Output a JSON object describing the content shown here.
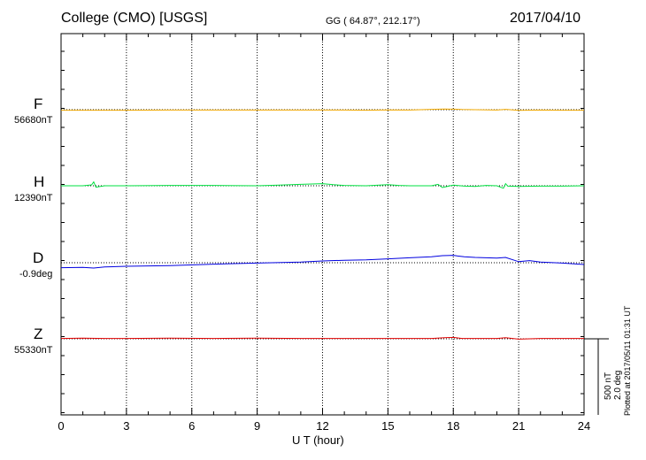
{
  "header": {
    "station": "College (CMO)  [USGS]",
    "coords": "GG ( 64.87°, 212.17°)",
    "date": "2017/04/10"
  },
  "footer": {
    "plotted": "Plotted at 2017/05/11 01:31  UT"
  },
  "scale": {
    "nt": "500 nT",
    "deg": "2.0 deg"
  },
  "colors": {
    "F": "#f0a800",
    "H": "#00e040",
    "D": "#0000e0",
    "Z": "#e00000"
  },
  "chart_data": {
    "type": "line",
    "xlabel": "U T (hour)",
    "xlim": [
      0,
      24
    ],
    "xticks": [
      "0",
      "3",
      "6",
      "9",
      "12",
      "15",
      "18",
      "21",
      "24"
    ],
    "grid": "dotted vertical lines every 3 hours",
    "series": [
      {
        "name": "F",
        "baseline": "56680nT",
        "x": [
          0,
          1.5,
          3,
          5,
          7,
          9,
          11,
          13,
          14,
          15,
          16,
          17,
          17.6,
          18,
          18.4,
          19,
          20,
          20.4,
          21,
          22,
          23,
          24
        ],
        "y": [
          -3,
          -3,
          -3,
          -2,
          -2,
          -2,
          -2,
          -2,
          -3,
          -1,
          -2,
          2,
          4,
          3,
          1,
          0,
          -2,
          2,
          -4,
          -2,
          -3,
          -3
        ]
      },
      {
        "name": "H",
        "baseline": "12390nT",
        "x": [
          0,
          1,
          1.4,
          1.5,
          1.6,
          2,
          3,
          5,
          7,
          9,
          10,
          11,
          12,
          12.5,
          13,
          14,
          15,
          15.5,
          16,
          17,
          17.3,
          17.5,
          18,
          18.5,
          19,
          19.5,
          20,
          20.3,
          20.4,
          20.5,
          21,
          22,
          23,
          24
        ],
        "y": [
          0,
          0,
          5,
          22,
          -8,
          0,
          0,
          2,
          2,
          0,
          4,
          8,
          12,
          6,
          2,
          0,
          6,
          2,
          0,
          0,
          8,
          -10,
          4,
          -2,
          -4,
          2,
          0,
          -14,
          12,
          -2,
          -4,
          -2,
          -2,
          0
        ]
      },
      {
        "name": "D",
        "baseline": "-0.9deg",
        "x": [
          0,
          1,
          1.5,
          2,
          3,
          5,
          7,
          9,
          11,
          12,
          13,
          14,
          15,
          16,
          17,
          17.5,
          18,
          18.2,
          18.5,
          19,
          20,
          20.4,
          21,
          21.5,
          22,
          23,
          24
        ],
        "y": [
          -28,
          -26,
          -30,
          -24,
          -20,
          -16,
          -8,
          -2,
          4,
          10,
          14,
          16,
          22,
          28,
          34,
          40,
          42,
          38,
          34,
          30,
          26,
          30,
          6,
          12,
          4,
          -2,
          -10
        ]
      },
      {
        "name": "Z",
        "baseline": "55330nT",
        "x": [
          0,
          1,
          2,
          3,
          5,
          7,
          9,
          11,
          13,
          15,
          17,
          17.6,
          18,
          18.4,
          19,
          20,
          20.4,
          21,
          22,
          23,
          24
        ],
        "y": [
          2,
          4,
          2,
          2,
          4,
          2,
          4,
          2,
          2,
          2,
          2,
          6,
          8,
          2,
          2,
          2,
          6,
          -2,
          2,
          2,
          2
        ]
      }
    ]
  }
}
